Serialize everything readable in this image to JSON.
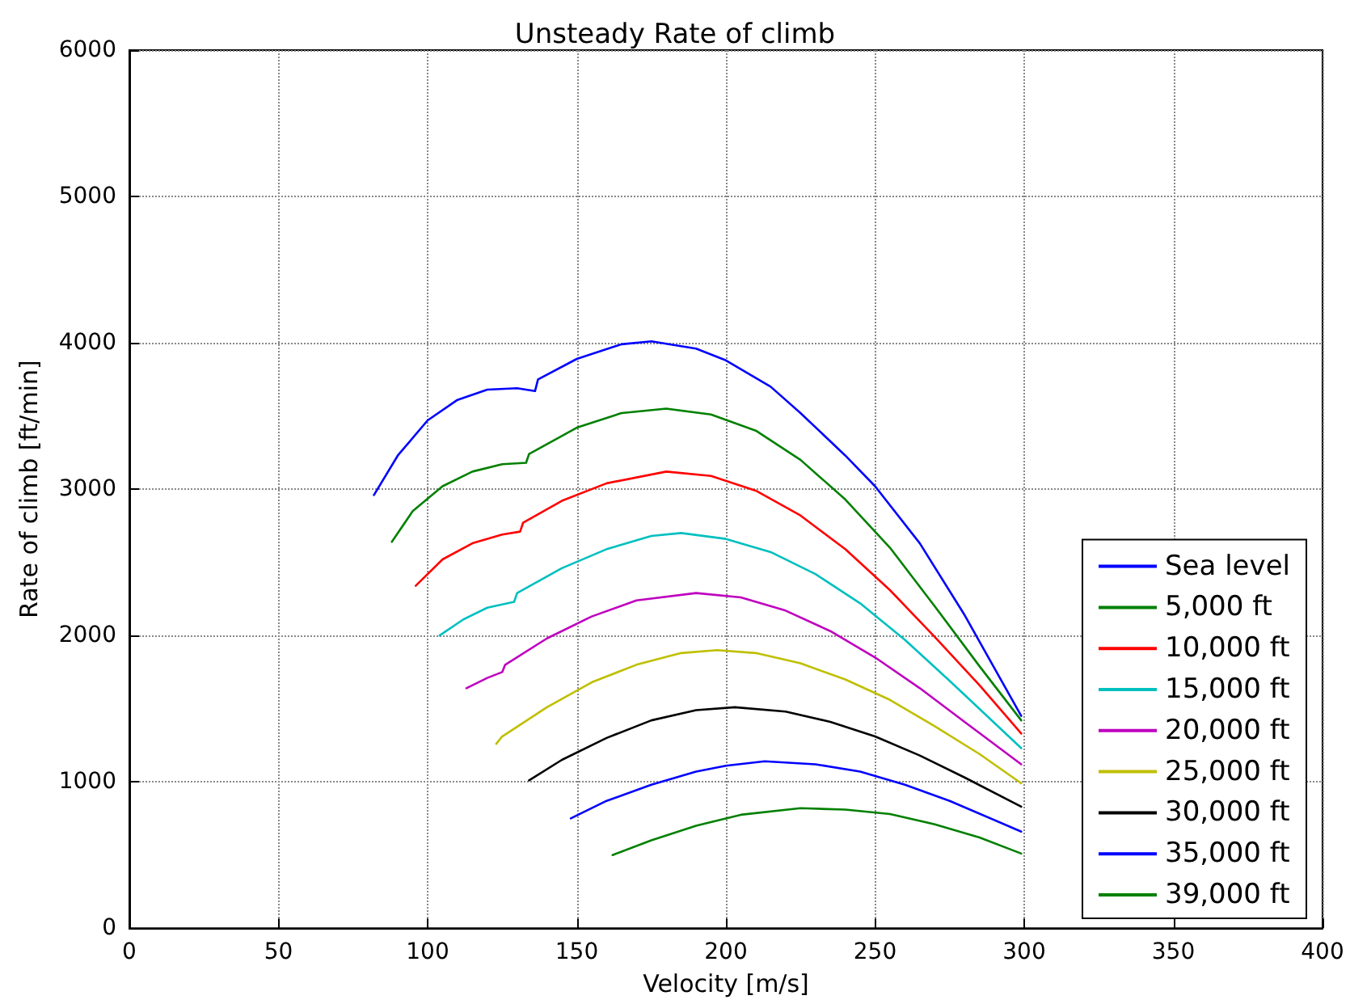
{
  "chart_data": {
    "type": "line",
    "title": "Unsteady Rate of climb",
    "xlabel": "Velocity [m/s]",
    "ylabel": "Rate of climb [ft/min]",
    "xlim": [
      0,
      400
    ],
    "xticks": [
      0,
      50,
      100,
      150,
      200,
      250,
      300,
      350,
      400
    ],
    "ylim": [
      0,
      6000
    ],
    "yticks": [
      0,
      1000,
      2000,
      3000,
      4000,
      5000,
      6000
    ],
    "grid": true,
    "legend": "bottom right",
    "line_style": "solid",
    "marker": "none",
    "series": [
      {
        "name": "Sea level",
        "color": "#0000ff",
        "x": [
          82,
          90,
          100,
          110,
          120,
          130,
          136,
          137,
          150,
          165,
          175,
          190,
          200,
          215,
          225,
          240,
          250,
          265,
          280,
          299
        ],
        "values": [
          2960,
          3230,
          3470,
          3610,
          3680,
          3690,
          3670,
          3750,
          3890,
          3990,
          4010,
          3960,
          3880,
          3700,
          3520,
          3230,
          3020,
          2630,
          2140,
          1450
        ]
      },
      {
        "name": "5,000 ft",
        "color": "#008000",
        "x": [
          88,
          95,
          105,
          115,
          125,
          133,
          134,
          150,
          165,
          180,
          195,
          210,
          225,
          240,
          255,
          270,
          285,
          299
        ],
        "values": [
          2640,
          2850,
          3020,
          3120,
          3170,
          3180,
          3240,
          3420,
          3520,
          3550,
          3510,
          3400,
          3200,
          2930,
          2600,
          2200,
          1790,
          1420
        ]
      },
      {
        "name": "10,000 ft",
        "color": "#ff0000",
        "x": [
          96,
          105,
          115,
          125,
          131,
          132,
          145,
          160,
          180,
          195,
          210,
          225,
          240,
          255,
          270,
          285,
          299
        ],
        "values": [
          2340,
          2520,
          2630,
          2690,
          2710,
          2770,
          2920,
          3040,
          3120,
          3090,
          2990,
          2820,
          2590,
          2310,
          1990,
          1660,
          1330
        ]
      },
      {
        "name": "15,000 ft",
        "color": "#00bfbf",
        "x": [
          104,
          112,
          120,
          129,
          130,
          145,
          160,
          175,
          185,
          200,
          215,
          230,
          245,
          260,
          275,
          299
        ],
        "values": [
          2000,
          2110,
          2190,
          2230,
          2290,
          2460,
          2590,
          2680,
          2700,
          2660,
          2570,
          2420,
          2220,
          1970,
          1690,
          1230
        ]
      },
      {
        "name": "20,000 ft",
        "color": "#bf00bf",
        "x": [
          113,
          120,
          125,
          126,
          140,
          155,
          170,
          190,
          205,
          220,
          235,
          250,
          265,
          280,
          299
        ],
        "values": [
          1640,
          1710,
          1750,
          1800,
          1980,
          2130,
          2240,
          2290,
          2260,
          2170,
          2030,
          1850,
          1640,
          1410,
          1120
        ]
      },
      {
        "name": "25,000 ft",
        "color": "#bfbf00",
        "x": [
          123,
          125,
          140,
          155,
          170,
          185,
          197,
          210,
          225,
          240,
          255,
          270,
          285,
          299
        ],
        "values": [
          1260,
          1310,
          1510,
          1680,
          1800,
          1880,
          1900,
          1880,
          1810,
          1700,
          1560,
          1380,
          1190,
          990
        ]
      },
      {
        "name": "30,000 ft",
        "color": "#000000",
        "x": [
          134,
          145,
          160,
          175,
          190,
          203,
          220,
          235,
          250,
          265,
          280,
          299
        ],
        "values": [
          1010,
          1150,
          1300,
          1420,
          1490,
          1510,
          1480,
          1410,
          1310,
          1180,
          1030,
          830
        ]
      },
      {
        "name": "35,000 ft",
        "color": "#0000ff",
        "x": [
          148,
          160,
          175,
          190,
          200,
          213,
          230,
          245,
          260,
          275,
          299
        ],
        "values": [
          750,
          870,
          980,
          1070,
          1110,
          1140,
          1120,
          1070,
          980,
          870,
          660
        ]
      },
      {
        "name": "39,000 ft",
        "color": "#008000",
        "x": [
          162,
          175,
          190,
          205,
          225,
          240,
          255,
          270,
          285,
          299
        ],
        "values": [
          500,
          600,
          700,
          775,
          820,
          810,
          780,
          710,
          620,
          510
        ]
      }
    ]
  }
}
